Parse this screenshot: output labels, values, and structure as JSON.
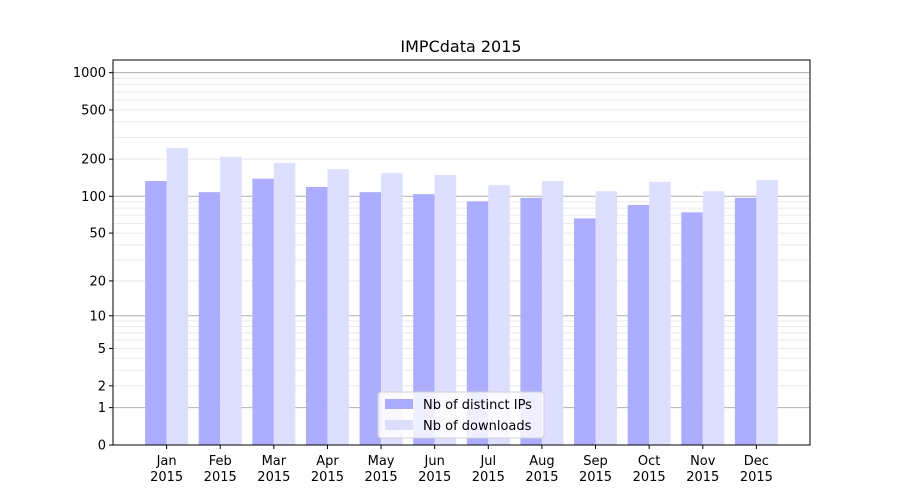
{
  "chart_data": {
    "type": "bar",
    "title": "IMPCdata 2015",
    "xlabel": "",
    "ylabel": "",
    "yscale": "log10(1+y)",
    "ylim": [
      0,
      1250
    ],
    "yticks": [
      0,
      1,
      2,
      5,
      10,
      20,
      50,
      100,
      200,
      500,
      1000
    ],
    "ytick_labels": [
      "0",
      "1",
      "2",
      "5",
      "10",
      "20",
      "50",
      "100",
      "200",
      "500",
      "1000"
    ],
    "grid": true,
    "legend_position": "bottom-center",
    "categories": [
      "Jan\n2015",
      "Feb\n2015",
      "Mar\n2015",
      "Apr\n2015",
      "May\n2015",
      "Jun\n2015",
      "Jul\n2015",
      "Aug\n2015",
      "Sep\n2015",
      "Oct\n2015",
      "Nov\n2015",
      "Dec\n2015"
    ],
    "series": [
      {
        "name": "Nb of distinct IPs",
        "color": "#aaaaff",
        "values": [
          133,
          108,
          139,
          119,
          108,
          104,
          91,
          97,
          66,
          85,
          74,
          97
        ]
      },
      {
        "name": "Nb of downloads",
        "color": "#ddddff",
        "values": [
          247,
          209,
          186,
          166,
          154,
          149,
          123,
          133,
          110,
          131,
          110,
          136
        ]
      }
    ]
  }
}
